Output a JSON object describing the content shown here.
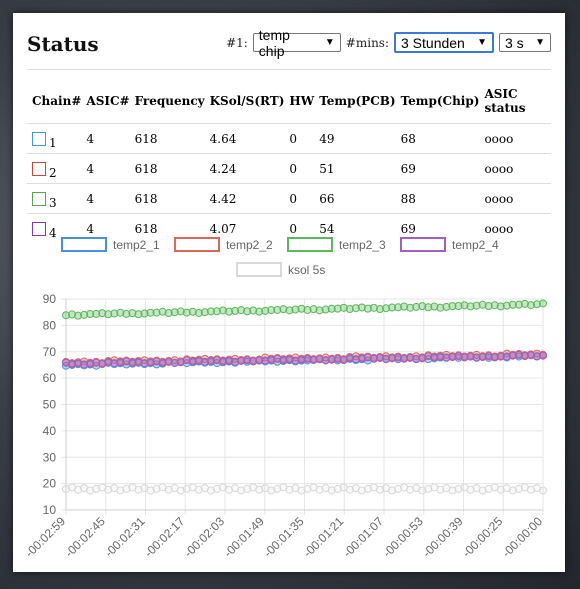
{
  "header": {
    "title": "Status"
  },
  "controls": {
    "chart_label": "#1:",
    "chart_select": "temp chip",
    "mins_label": "#mins:",
    "mins_select": "3 Stunden",
    "interval_select": "3 s"
  },
  "table": {
    "headers": [
      "Chain#",
      "ASIC#",
      "Frequency",
      "KSol/S(RT)",
      "HW",
      "Temp(PCB)",
      "Temp(Chip)",
      "ASIC status"
    ],
    "rows": [
      [
        "1",
        "4",
        "618",
        "4.64",
        "0",
        "49",
        "68",
        "oooo"
      ],
      [
        "2",
        "4",
        "618",
        "4.24",
        "0",
        "51",
        "69",
        "oooo"
      ],
      [
        "3",
        "4",
        "618",
        "4.42",
        "0",
        "66",
        "88",
        "oooo"
      ],
      [
        "4",
        "4",
        "618",
        "4.07",
        "0",
        "54",
        "69",
        "oooo"
      ]
    ],
    "swatch_colors": [
      "#3a9bd8",
      "#c9473c",
      "#55a64f",
      "#8a3ba0"
    ]
  },
  "chart_data": {
    "type": "line",
    "legend": [
      "temp2_1",
      "temp2_2",
      "temp2_3",
      "temp2_4",
      "ksol 5s"
    ],
    "x_ticks": [
      "-00:02:59",
      "-00:02:45",
      "-00:02:31",
      "-00:02:17",
      "-00:02:03",
      "-00:01:49",
      "-00:01:35",
      "-00:01:21",
      "-00:01:07",
      "-00:00:53",
      "-00:00:39",
      "-00:00:25",
      "-00:00:00"
    ],
    "y_ticks": [
      10,
      20,
      30,
      40,
      50,
      60,
      70,
      80,
      90
    ],
    "ylim": [
      10,
      90
    ],
    "series": [
      {
        "name": "temp2_1",
        "color": "#4a90d9",
        "start": 65,
        "end": 68.5
      },
      {
        "name": "temp2_2",
        "color": "#e0665d",
        "start": 66,
        "end": 69
      },
      {
        "name": "temp2_3",
        "color": "#5cb85c",
        "start": 84,
        "end": 88
      },
      {
        "name": "temp2_4",
        "color": "#a05fc6",
        "start": 65.5,
        "end": 68.5
      },
      {
        "name": "ksol 5s",
        "color": "#d8d8d8",
        "start": 18,
        "end": 18
      }
    ]
  }
}
